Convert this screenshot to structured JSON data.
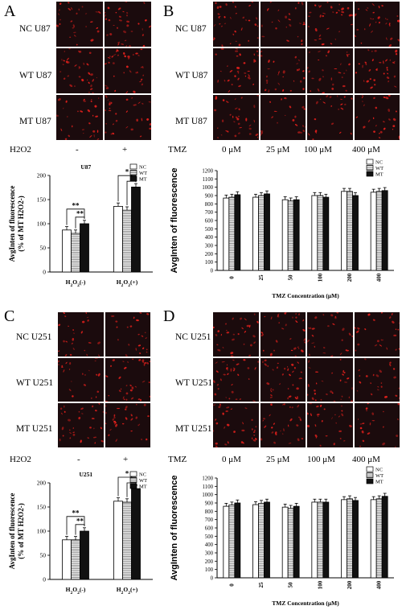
{
  "panels": {
    "A": {
      "letter": "A",
      "rows": [
        "NC U87",
        "WT U87",
        "MT U87"
      ],
      "treatment_label": "H2O2",
      "conditions": [
        "-",
        "+"
      ]
    },
    "B": {
      "letter": "B",
      "rows": [
        "NC U87",
        "WT U87",
        "MT U87"
      ],
      "treatment_label": "TMZ",
      "conditions": [
        "0 μM",
        "25 μM",
        "100 μM",
        "400 μM"
      ]
    },
    "C": {
      "letter": "C",
      "rows": [
        "NC U251",
        "WT U251",
        "MT U251"
      ],
      "treatment_label": "H2O2",
      "conditions": [
        "-",
        "+"
      ]
    },
    "D": {
      "letter": "D",
      "rows": [
        "NC U251",
        "WT U251",
        "MT U251"
      ],
      "treatment_label": "TMZ",
      "conditions": [
        "0 μM",
        "25 μM",
        "100 μM",
        "400 μM"
      ]
    }
  },
  "colors": {
    "micro_bg": "#1b0b0d",
    "cell": "#e0201c"
  },
  "chart_data": [
    {
      "id": "A",
      "type": "bar",
      "title": "U87",
      "ylabel": "AvgInten of fluorescence (% of MT H2O2-)",
      "categories": [
        "H2O2(-)",
        "H2O2(+)"
      ],
      "ylim": [
        0,
        200
      ],
      "yticks": [
        0,
        50,
        100,
        150,
        200
      ],
      "series": [
        {
          "name": "NC",
          "values": [
            87,
            136
          ]
        },
        {
          "name": "WT",
          "values": [
            80,
            128
          ]
        },
        {
          "name": "MT",
          "values": [
            100,
            176
          ]
        }
      ],
      "legend": "top-right",
      "significance": [
        "**",
        "**",
        "*",
        "*"
      ]
    },
    {
      "id": "B",
      "type": "bar",
      "title": "",
      "xlabel": "TMZ Concentration (μM)",
      "ylabel": "AvgInten of fluorescence",
      "categories": [
        "0",
        "25",
        "50",
        "100",
        "200",
        "400"
      ],
      "ylim": [
        0,
        1200
      ],
      "yticks": [
        0,
        100,
        200,
        300,
        400,
        500,
        600,
        700,
        800,
        900,
        1000,
        1100,
        1200
      ],
      "series": [
        {
          "name": "NC",
          "values": [
            870,
            880,
            850,
            900,
            950,
            940
          ]
        },
        {
          "name": "WT",
          "values": [
            880,
            900,
            835,
            900,
            950,
            950
          ]
        },
        {
          "name": "MT",
          "values": [
            910,
            920,
            850,
            880,
            900,
            960
          ]
        }
      ],
      "legend": "top-right"
    },
    {
      "id": "C",
      "type": "bar",
      "title": "U251",
      "ylabel": "AvgInten of fluorescence (% of MT H2O2-)",
      "categories": [
        "H2O2(-)",
        "H2O2(+)"
      ],
      "ylim": [
        0,
        200
      ],
      "yticks": [
        0,
        50,
        100,
        150,
        200
      ],
      "series": [
        {
          "name": "NC",
          "values": [
            82,
            162
          ]
        },
        {
          "name": "WT",
          "values": [
            82,
            160
          ]
        },
        {
          "name": "MT",
          "values": [
            100,
            188
          ]
        }
      ],
      "legend": "top-right",
      "significance": [
        "**",
        "**",
        "*",
        "*"
      ]
    },
    {
      "id": "D",
      "type": "bar",
      "title": "",
      "xlabel": "TMZ Concentration (μM)",
      "ylabel": "AvgInten of fluorescence",
      "categories": [
        "0",
        "25",
        "50",
        "100",
        "200",
        "400"
      ],
      "ylim": [
        0,
        1200
      ],
      "yticks": [
        0,
        100,
        200,
        300,
        400,
        500,
        600,
        700,
        800,
        900,
        1000,
        1100,
        1200
      ],
      "series": [
        {
          "name": "NC",
          "values": [
            860,
            880,
            850,
            910,
            940,
            940
          ]
        },
        {
          "name": "WT",
          "values": [
            875,
            895,
            835,
            910,
            950,
            950
          ]
        },
        {
          "name": "MT",
          "values": [
            900,
            910,
            860,
            910,
            930,
            980
          ]
        }
      ],
      "legend": "top-right"
    }
  ]
}
